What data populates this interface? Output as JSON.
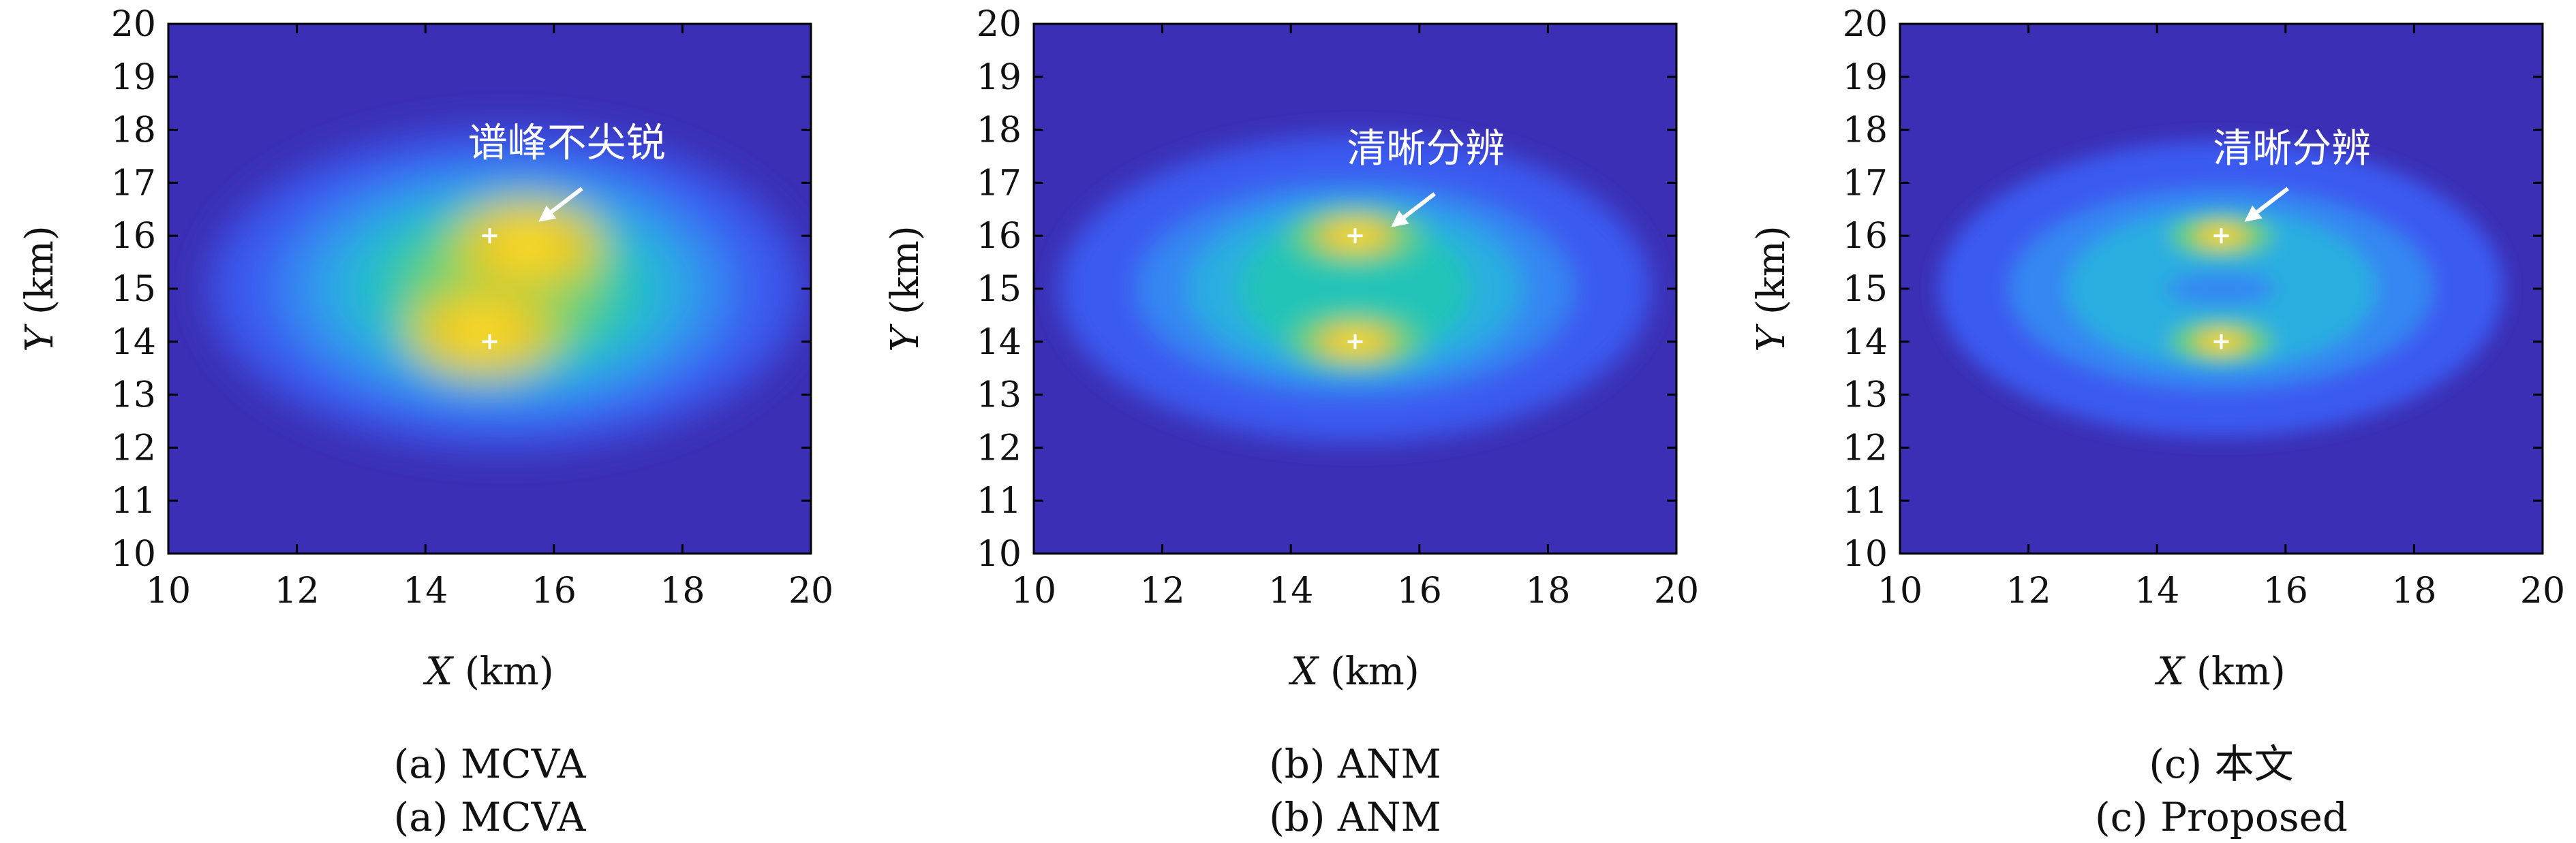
{
  "chart_data": [
    {
      "type": "heatmap",
      "caption_lines": [
        "(a) MCVA",
        "(a) MCVA"
      ],
      "x_unit_label": "(km)",
      "y_unit_label": "(km)",
      "x_axis_symbol": "X",
      "y_axis_symbol": "Y",
      "xlim": [
        10,
        20
      ],
      "ylim": [
        10,
        20
      ],
      "x_ticks": [
        10,
        12,
        14,
        16,
        18,
        20
      ],
      "y_ticks": [
        10,
        11,
        12,
        13,
        14,
        15,
        16,
        17,
        18,
        19,
        20
      ],
      "targets": [
        {
          "x": 15,
          "y": 16
        },
        {
          "x": 15,
          "y": 14
        }
      ],
      "peaks": [
        {
          "x": 15.6,
          "y": 15.8,
          "amp": 1.0
        },
        {
          "x": 14.9,
          "y": 14.2,
          "amp": 0.98
        }
      ],
      "annotation": {
        "text": "谱峰不尖锐",
        "text_x": 16.2,
        "text_y": 17.5,
        "arrow_to": {
          "x": 15.8,
          "y": 16.3
        }
      }
    },
    {
      "type": "heatmap",
      "caption_lines": [
        "(b) ANM",
        "(b) ANM"
      ],
      "x_unit_label": "(km)",
      "y_unit_label": "(km)",
      "x_axis_symbol": "X",
      "y_axis_symbol": "Y",
      "xlim": [
        10,
        20
      ],
      "ylim": [
        10,
        20
      ],
      "x_ticks": [
        10,
        12,
        14,
        16,
        18,
        20
      ],
      "y_ticks": [
        10,
        11,
        12,
        13,
        14,
        15,
        16,
        17,
        18,
        19,
        20
      ],
      "targets": [
        {
          "x": 15,
          "y": 16
        },
        {
          "x": 15,
          "y": 14
        }
      ],
      "peaks": [
        {
          "x": 15.0,
          "y": 16.0,
          "amp": 1.0
        },
        {
          "x": 15.0,
          "y": 14.0,
          "amp": 1.0
        }
      ],
      "annotation": {
        "text": "清晰分辨",
        "text_x": 16.1,
        "text_y": 17.4,
        "arrow_to": {
          "x": 15.6,
          "y": 16.2
        }
      }
    },
    {
      "type": "heatmap",
      "caption_lines": [
        "(c) 本文",
        "(c) Proposed"
      ],
      "x_unit_label": "(km)",
      "y_unit_label": "(km)",
      "x_axis_symbol": "X",
      "y_axis_symbol": "Y",
      "xlim": [
        10,
        20
      ],
      "ylim": [
        10,
        20
      ],
      "x_ticks": [
        10,
        12,
        14,
        16,
        18,
        20
      ],
      "y_ticks": [
        10,
        11,
        12,
        13,
        14,
        15,
        16,
        17,
        18,
        19,
        20
      ],
      "targets": [
        {
          "x": 15,
          "y": 16
        },
        {
          "x": 15,
          "y": 14
        }
      ],
      "peaks": [
        {
          "x": 15.0,
          "y": 16.0,
          "amp": 0.9
        },
        {
          "x": 15.0,
          "y": 14.0,
          "amp": 0.9
        }
      ],
      "annotation": {
        "text": "清晰分辨",
        "text_x": 16.1,
        "text_y": 17.4,
        "arrow_to": {
          "x": 15.4,
          "y": 16.3
        }
      }
    }
  ],
  "colormap": [
    "#3b2fb5",
    "#3a5af0",
    "#3587f2",
    "#29aee0",
    "#22c4b8",
    "#63cf7a",
    "#b7d33c",
    "#f3c21e",
    "#fbe62e"
  ]
}
